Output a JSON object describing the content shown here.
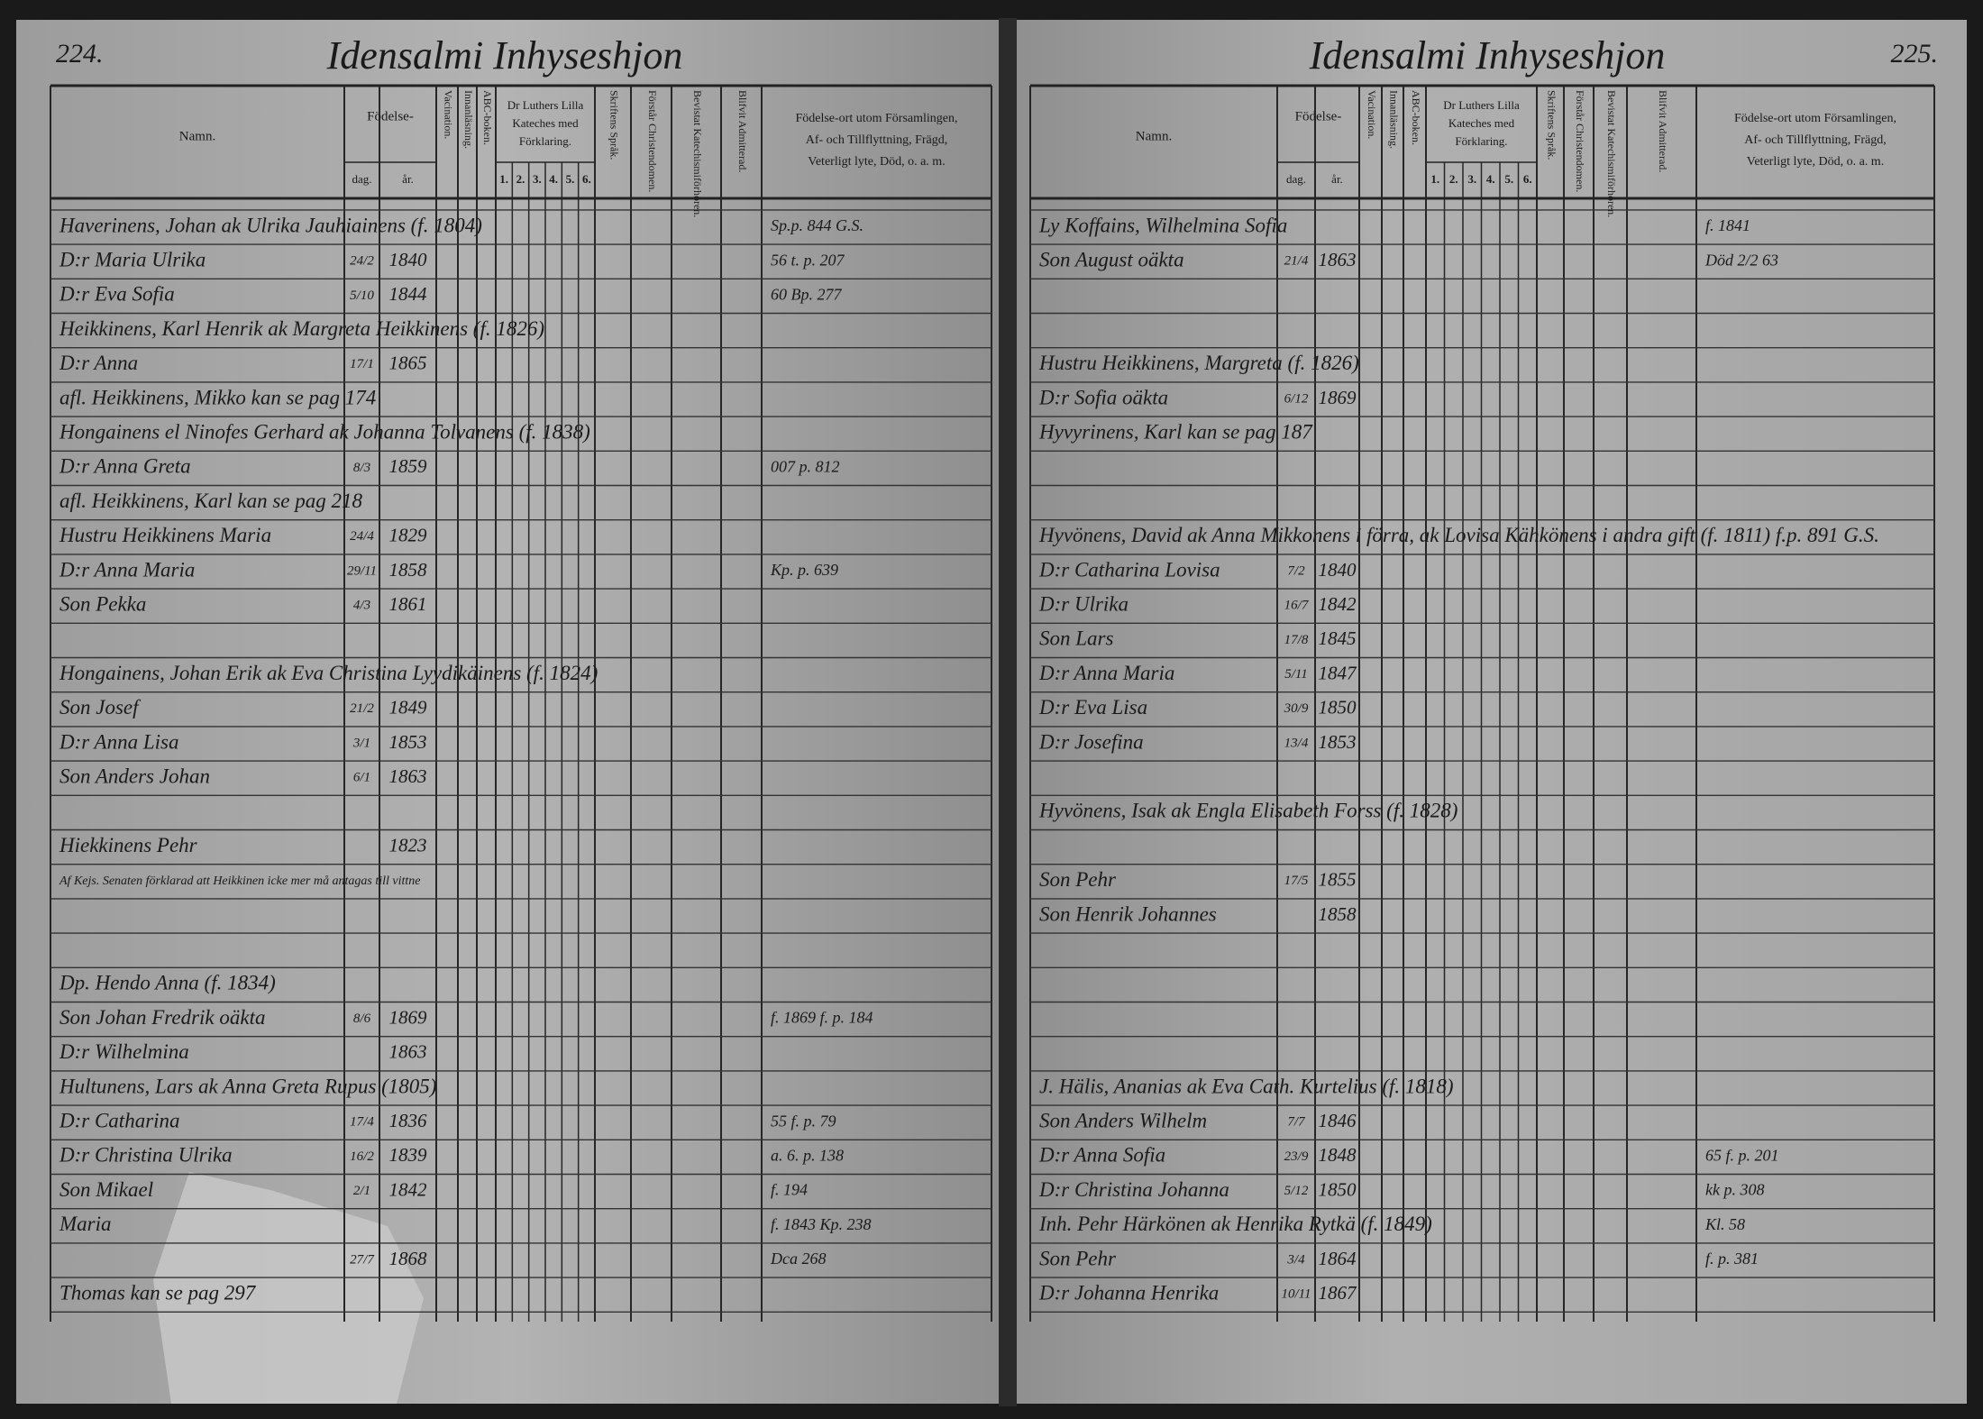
{
  "headers": {
    "name": "Namn.",
    "birth": "Födelse-",
    "day": "dag.",
    "year": "år.",
    "vaccination": "Vacination.",
    "reading": "Innanläsning.",
    "abc": "ABC-boken.",
    "catechism": [
      "Dr Luthers Lilla",
      "Kateches med",
      "Förklaring."
    ],
    "parts": [
      "1.",
      "2.",
      "3.",
      "4.",
      "5.",
      "6."
    ],
    "scripture": "Skriftens Språk.",
    "christianity": "Förstår Christendomen.",
    "hearings": "Bevistat Katechismiförhören.",
    "admitted": "Blifvit Admitterad.",
    "remarks": [
      "Födelse-ort utom Församlingen,",
      "Af- och Tillflyttning, Frägd,",
      "Veterligt lyte, Död, o. a. m."
    ]
  },
  "left_page": {
    "page_number": "224.",
    "title": "Idensalmi Inhyseshjon",
    "rows": [
      {
        "name": "Haverinens, Johan ak Ulrika Jauhiainens (f. 1804)",
        "note": "Sp.p. 844 G.S."
      },
      {
        "name": "D:r Maria Ulrika",
        "day": "24/2",
        "year": "1840",
        "note": "56 t. p. 207"
      },
      {
        "name": "D:r Eva Sofia",
        "day": "5/10",
        "year": "1844",
        "note": "60 Bp. 277"
      },
      {
        "name": "Heikkinens, Karl Henrik ak Margreta Heikkinens (f. 1826)"
      },
      {
        "name": "D:r Anna",
        "day": "17/1",
        "year": "1865"
      },
      {
        "name": "afl. Heikkinens, Mikko kan se pag 174"
      },
      {
        "name": "Hongainens el Ninofes Gerhard ak Johanna Tolvanens (f. 1838)"
      },
      {
        "name": "D:r Anna Greta",
        "day": "8/3",
        "year": "1859",
        "note": "007 p. 812"
      },
      {
        "name": "afl. Heikkinens, Karl kan se pag 218"
      },
      {
        "name": "Hustru Heikkinens Maria",
        "day": "24/4",
        "year": "1829"
      },
      {
        "name": "D:r Anna Maria",
        "day": "29/11",
        "year": "1858",
        "note": "Kp. p. 639"
      },
      {
        "name": "Son Pekka",
        "day": "4/3",
        "year": "1861"
      },
      {
        "name": "Hongainens, Johan Erik ak Eva Christina Lyydikäinens (f. 1824)"
      },
      {
        "name": "Son Josef",
        "day": "21/2",
        "year": "1849"
      },
      {
        "name": "D:r Anna Lisa",
        "day": "3/1",
        "year": "1853"
      },
      {
        "name": "Son Anders Johan",
        "day": "6/1",
        "year": "1863"
      },
      {
        "name": "Hiekkinens Pehr",
        "year": "1823",
        "remark": "Af Kejs. Senaten förklarad att Heikkinen icke mer må antagas till vittne"
      },
      {
        "name": "Dp. Hendo Anna (f. 1834)"
      },
      {
        "name": "Son Johan Fredrik oäkta",
        "day": "8/6",
        "year": "1869",
        "note": "f. 1869 f. p. 184"
      },
      {
        "name": "D:r Wilhelmina",
        "year": "1863"
      },
      {
        "name": "Hultunens, Lars ak Anna Greta Rupus (1805)"
      },
      {
        "name": "D:r Catharina",
        "day": "17/4",
        "year": "1836",
        "note": "55 f. p. 79"
      },
      {
        "name": "D:r Christina Ulrika",
        "day": "16/2",
        "year": "1839",
        "note": "a. 6. p. 138"
      },
      {
        "name": "Son Mikael",
        "day": "2/1",
        "year": "1842",
        "note": "f. 194"
      },
      {
        "name": "Maria",
        "note": "f. 1843 Kp. 238"
      },
      {
        "day": "27/7",
        "year": "1868",
        "note": "Dca 268"
      },
      {
        "name": "Thomas kan se pag 297"
      }
    ]
  },
  "right_page": {
    "page_number": "225.",
    "title": "Idensalmi Inhyseshjon",
    "rows": [
      {
        "name": "Ly Koffains, Wilhelmina Sofia",
        "note": "f. 1841"
      },
      {
        "name": "Son August oäkta",
        "day": "21/4",
        "year": "1863",
        "note": "Död 2/2 63"
      },
      {
        "name": "Hustru Heikkinens, Margreta (f. 1826)"
      },
      {
        "name": "D:r Sofia oäkta",
        "day": "6/12",
        "year": "1869"
      },
      {
        "name": "Hyvyrinens, Karl kan se pag 187"
      },
      {
        "name": "Hyvönens, David ak Anna Mikkonens i förra, ak Lovisa Kähkönens i andra gift (f. 1811) f.p. 891 G.S."
      },
      {
        "name": "D:r Catharina Lovisa",
        "day": "7/2",
        "year": "1840"
      },
      {
        "name": "D:r Ulrika",
        "day": "16/7",
        "year": "1842"
      },
      {
        "name": "Son Lars",
        "day": "17/8",
        "year": "1845"
      },
      {
        "name": "D:r Anna Maria",
        "day": "5/11",
        "year": "1847"
      },
      {
        "name": "D:r Eva Lisa",
        "day": "30/9",
        "year": "1850"
      },
      {
        "name": "D:r Josefina",
        "day": "13/4",
        "year": "1853"
      },
      {
        "name": "Hyvönens, Isak ak Engla Elisabeth Forss (f. 1828)"
      },
      {
        "name": "Son Pehr",
        "day": "17/5",
        "year": "1855"
      },
      {
        "name": "Son Henrik Johannes",
        "year": "1858"
      },
      {
        "name": "J. Hälis, Ananias ak Eva Cath. Kurtelius (f. 1818)"
      },
      {
        "name": "Son Anders Wilhelm",
        "day": "7/7",
        "year": "1846"
      },
      {
        "name": "D:r Anna Sofia",
        "day": "23/9",
        "year": "1848",
        "note": "65 f. p. 201"
      },
      {
        "name": "D:r Christina Johanna",
        "day": "5/12",
        "year": "1850",
        "note": "kk p. 308"
      },
      {
        "name": "Inh. Pehr Härkönen ak Henrika Rytkä (f. 1849)",
        "note": "Kl. 58"
      },
      {
        "name": "Son Pehr",
        "day": "3/4",
        "year": "1864",
        "note": "f. p. 381"
      },
      {
        "name": "D:r Johanna Henrika",
        "day": "10/11",
        "year": "1867"
      }
    ]
  }
}
